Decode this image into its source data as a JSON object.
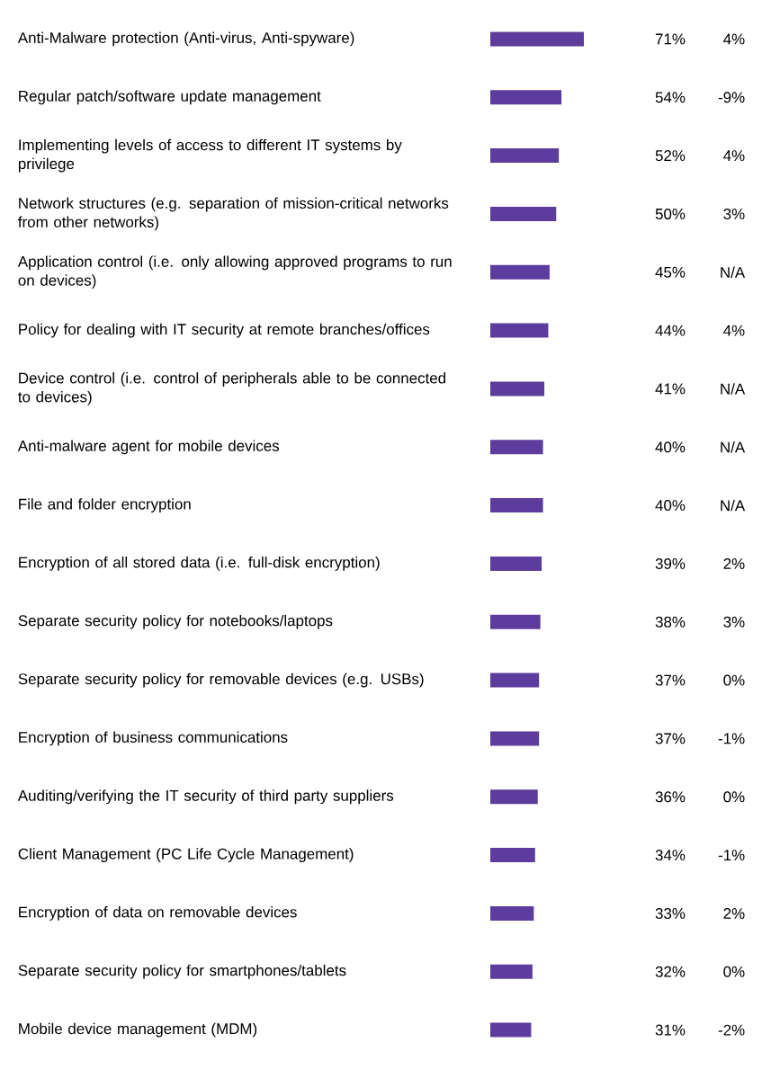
{
  "chart_data": {
    "type": "bar",
    "orientation": "horizontal",
    "color": "#5c3c9c",
    "categories": [
      "Anti-Malware protection (Anti-virus, Anti-spyware)",
      "Regular patch/software update management",
      "Implementing levels of access to different IT systems by privilege",
      "Network structures (e.g. separation of mission-critical networks from other networks)",
      "Application control (i.e. only allowing approved programs to run on devices)",
      "Policy for dealing with IT security at remote branches/offices",
      "Device control (i.e. control of peripherals able to be connected to devices)",
      "Anti-malware agent for mobile devices",
      "File and folder encryption",
      "Encryption of all stored data (i.e. full-disk encryption)",
      "Separate security policy for notebooks/laptops",
      "Separate security policy for removable devices (e.g. USBs)",
      "Encryption of business communications",
      "Auditing/verifying the IT security of third party suppliers",
      "Client Management (PC Life Cycle Management)",
      "Encryption of data on removable devices",
      "Separate security policy for smartphones/tablets",
      "Mobile device management (MDM)"
    ],
    "values": [
      71,
      54,
      52,
      50,
      45,
      44,
      41,
      40,
      40,
      39,
      38,
      37,
      37,
      36,
      34,
      33,
      32,
      31
    ],
    "value_labels": [
      "71%",
      "54%",
      "52%",
      "50%",
      "45%",
      "44%",
      "41%",
      "40%",
      "40%",
      "39%",
      "38%",
      "37%",
      "37%",
      "36%",
      "34%",
      "33%",
      "32%",
      "31%"
    ],
    "annotations": [
      "4%",
      "-9%",
      "4%",
      "3%",
      "N/A",
      "4%",
      "N/A",
      "N/A",
      "N/A",
      "2%",
      "3%",
      "0%",
      "-1%",
      "0%",
      "-1%",
      "2%",
      "0%",
      "-2%"
    ]
  }
}
